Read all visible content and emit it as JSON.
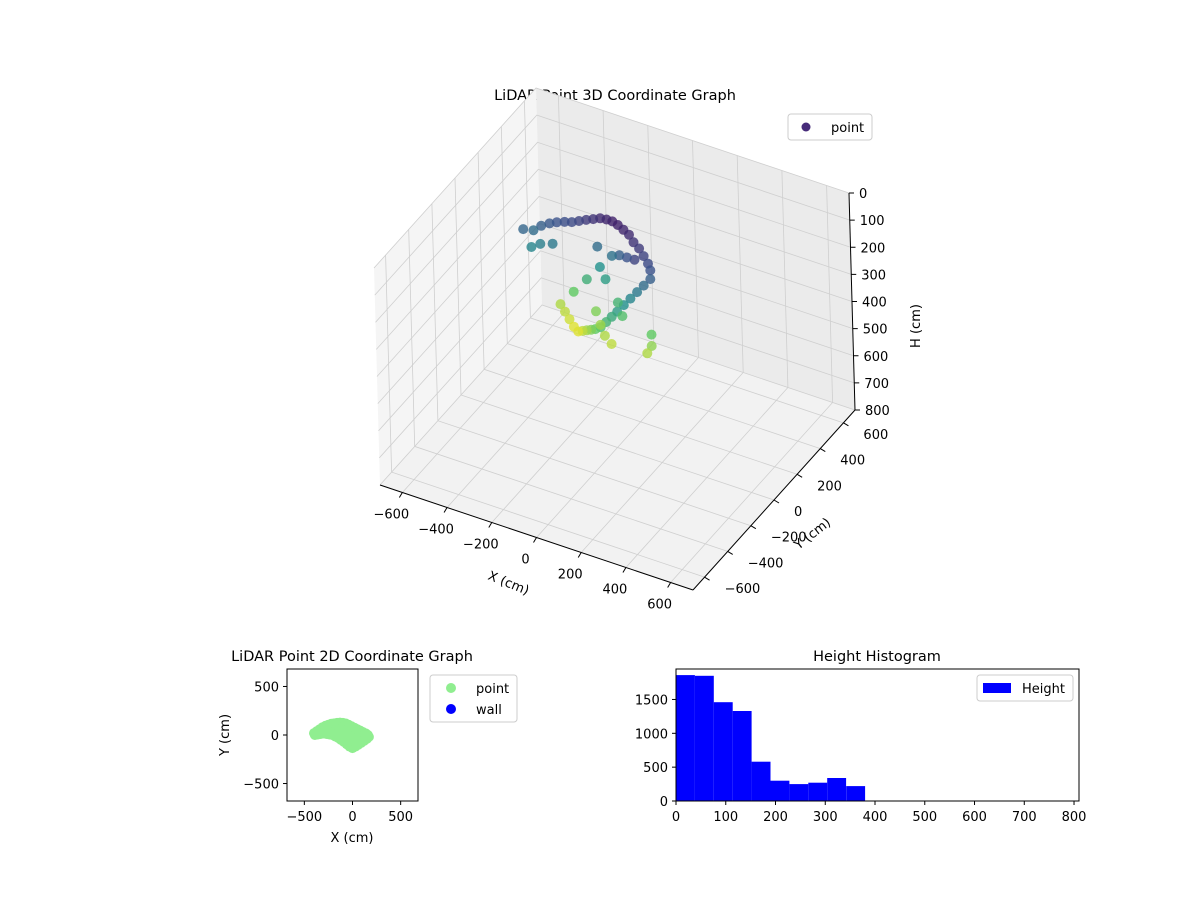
{
  "figure": {
    "background": "#ffffff"
  },
  "chart_data": [
    {
      "type": "scatter",
      "title": "LiDAR Point 3D Coordinate Graph",
      "xlabel": "X (cm)",
      "ylabel": "Y (cm)",
      "zlabel": "H (cm)",
      "xlim": [
        -700,
        700
      ],
      "ylim": [
        -700,
        700
      ],
      "zlim": [
        800,
        0
      ],
      "x_ticks": [
        -600,
        -400,
        -200,
        0,
        200,
        400,
        600
      ],
      "y_ticks": [
        -600,
        -400,
        -200,
        0,
        200,
        400,
        600
      ],
      "z_ticks": [
        0,
        100,
        200,
        300,
        400,
        500,
        600,
        700,
        800
      ],
      "grid": true,
      "colormap": "viridis",
      "legend": {
        "placement": "top-right",
        "entries": [
          {
            "label": "point",
            "color": "#472c7a"
          }
        ]
      },
      "series": [
        {
          "name": "point",
          "points": [
            [
              -420,
              40,
              130
            ],
            [
              -390,
              70,
              140
            ],
            [
              -360,
              80,
              120
            ],
            [
              -330,
              95,
              110
            ],
            [
              -300,
              100,
              100
            ],
            [
              -270,
              110,
              95
            ],
            [
              -240,
              115,
              90
            ],
            [
              -210,
              120,
              80
            ],
            [
              -180,
              125,
              70
            ],
            [
              -150,
              128,
              60
            ],
            [
              -120,
              130,
              50
            ],
            [
              -90,
              128,
              45
            ],
            [
              -60,
              120,
              40
            ],
            [
              -30,
              110,
              40
            ],
            [
              0,
              100,
              45
            ],
            [
              30,
              90,
              50
            ],
            [
              60,
              70,
              60
            ],
            [
              90,
              60,
              70
            ],
            [
              120,
              40,
              80
            ],
            [
              150,
              20,
              90
            ],
            [
              170,
              0,
              100
            ],
            [
              180,
              -20,
              120
            ],
            [
              160,
              -40,
              140
            ],
            [
              140,
              -60,
              160
            ],
            [
              120,
              -80,
              180
            ],
            [
              100,
              -100,
              200
            ],
            [
              80,
              -120,
              220
            ],
            [
              60,
              -130,
              240
            ],
            [
              40,
              -140,
              260
            ],
            [
              20,
              -150,
              280
            ],
            [
              -10,
              -140,
              300
            ],
            [
              -40,
              -120,
              320
            ],
            [
              -70,
              -100,
              340
            ],
            [
              -100,
              -80,
              360
            ],
            [
              -130,
              -60,
              380
            ],
            [
              -160,
              -40,
              380
            ],
            [
              -190,
              -20,
              370
            ],
            [
              -220,
              0,
              360
            ],
            [
              -250,
              20,
              350
            ],
            [
              -200,
              40,
              300
            ],
            [
              -150,
              60,
              250
            ],
            [
              -100,
              80,
              200
            ],
            [
              -50,
              90,
              150
            ],
            [
              0,
              60,
              120
            ],
            [
              50,
              30,
              100
            ],
            [
              100,
              0,
              80
            ],
            [
              -80,
              0,
              320
            ],
            [
              -40,
              -40,
              340
            ],
            [
              0,
              -80,
              350
            ],
            [
              40,
              -100,
              360
            ],
            [
              200,
              -60,
              300
            ],
            [
              210,
              -80,
              330
            ],
            [
              200,
              -100,
              350
            ],
            [
              -300,
              60,
              160
            ],
            [
              -350,
              50,
              170
            ],
            [
              -380,
              30,
              180
            ],
            [
              -120,
              100,
              140
            ],
            [
              -60,
              50,
              220
            ],
            [
              20,
              0,
              260
            ],
            [
              60,
              -40,
              280
            ]
          ]
        }
      ]
    },
    {
      "type": "scatter",
      "title": "LiDAR Point 2D Coordinate Graph",
      "xlabel": "X (cm)",
      "ylabel": "Y (cm)",
      "xlim": [
        -680,
        680
      ],
      "ylim": [
        -680,
        680
      ],
      "x_ticks": [
        -500,
        0,
        500
      ],
      "y_ticks": [
        -500,
        0,
        500
      ],
      "legend": {
        "placement": "outside-right",
        "entries": [
          {
            "label": "point",
            "color": "#90ee90"
          },
          {
            "label": "wall",
            "color": "#0000ff"
          }
        ]
      },
      "series": [
        {
          "name": "point",
          "color": "#90ee90",
          "points": [
            [
              -400,
              20
            ],
            [
              -370,
              40
            ],
            [
              -340,
              60
            ],
            [
              -310,
              80
            ],
            [
              -280,
              95
            ],
            [
              -250,
              105
            ],
            [
              -220,
              115
            ],
            [
              -190,
              120
            ],
            [
              -160,
              125
            ],
            [
              -130,
              128
            ],
            [
              -100,
              125
            ],
            [
              -70,
              118
            ],
            [
              -40,
              105
            ],
            [
              -10,
              90
            ],
            [
              20,
              75
            ],
            [
              50,
              60
            ],
            [
              80,
              45
            ],
            [
              110,
              30
            ],
            [
              140,
              15
            ],
            [
              160,
              0
            ],
            [
              170,
              -20
            ],
            [
              150,
              -40
            ],
            [
              120,
              -60
            ],
            [
              90,
              -80
            ],
            [
              60,
              -100
            ],
            [
              30,
              -120
            ],
            [
              0,
              -135
            ],
            [
              -30,
              -120
            ],
            [
              -60,
              -95
            ],
            [
              -90,
              -70
            ],
            [
              -120,
              -50
            ],
            [
              -150,
              -30
            ],
            [
              -180,
              -15
            ],
            [
              -210,
              0
            ],
            [
              -240,
              5
            ],
            [
              -270,
              10
            ],
            [
              -300,
              15
            ],
            [
              -330,
              10
            ],
            [
              -360,
              5
            ],
            [
              -390,
              0
            ],
            [
              -350,
              30
            ],
            [
              -300,
              50
            ],
            [
              -250,
              60
            ],
            [
              -200,
              70
            ],
            [
              -150,
              80
            ],
            [
              -100,
              80
            ],
            [
              -50,
              60
            ],
            [
              0,
              40
            ],
            [
              50,
              20
            ],
            [
              100,
              0
            ],
            [
              -200,
              30
            ],
            [
              -150,
              20
            ],
            [
              -100,
              10
            ],
            [
              -50,
              0
            ],
            [
              0,
              -30
            ],
            [
              50,
              -60
            ],
            [
              100,
              -40
            ],
            [
              -250,
              35
            ],
            [
              -300,
              30
            ],
            [
              -120,
              60
            ],
            [
              -60,
              30
            ],
            [
              -20,
              -20
            ],
            [
              30,
              -80
            ],
            [
              80,
              -20
            ],
            [
              130,
              10
            ]
          ]
        },
        {
          "name": "wall",
          "color": "#0000ff",
          "points": []
        }
      ]
    },
    {
      "type": "bar",
      "title": "Height Histogram",
      "xlabel": "",
      "ylabel": "",
      "xlim": [
        0,
        810
      ],
      "ylim": [
        0,
        1950
      ],
      "x_ticks": [
        0,
        100,
        200,
        300,
        400,
        500,
        600,
        700,
        800
      ],
      "y_ticks": [
        0,
        500,
        1000,
        1500
      ],
      "color": "#0000ff",
      "legend": {
        "placement": "top-right",
        "entries": [
          {
            "label": "Height",
            "color": "#0000ff"
          }
        ]
      },
      "bin_edges": [
        0,
        38,
        76,
        114,
        152,
        190,
        228,
        266,
        304,
        342,
        380
      ],
      "counts": [
        1860,
        1850,
        1460,
        1330,
        580,
        300,
        250,
        270,
        340,
        220
      ]
    }
  ]
}
